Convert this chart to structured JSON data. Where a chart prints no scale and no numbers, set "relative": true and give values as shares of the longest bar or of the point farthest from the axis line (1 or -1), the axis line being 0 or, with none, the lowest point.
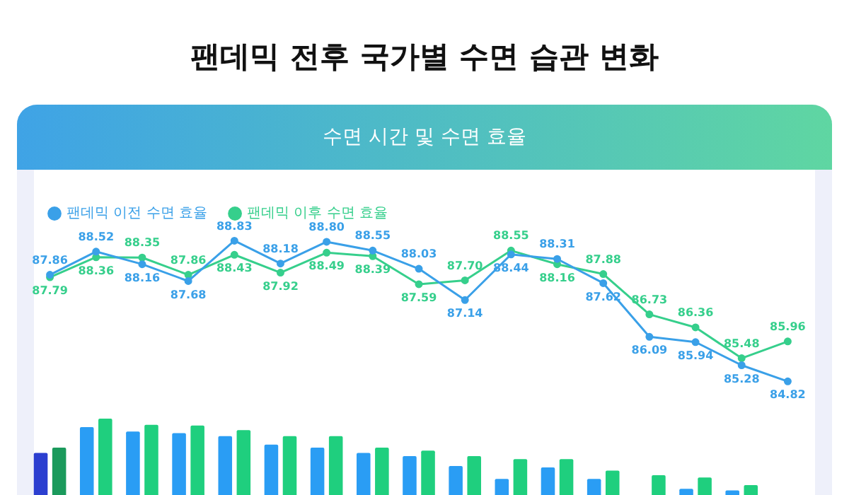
{
  "chart_data": [
    {
      "type": "line",
      "title": "팬데믹 전후 국가별 수면 습관 변화",
      "subtitle": "수면 시간 및 수면 효율",
      "categories": [
        null,
        null,
        null,
        null,
        null,
        null,
        null,
        null,
        null,
        null,
        null,
        null,
        null,
        null,
        null,
        null,
        null
      ],
      "series": [
        {
          "name": "팬데믹 이전 수면 효율",
          "color": "#3aa0e8",
          "values": [
            87.86,
            88.52,
            88.16,
            87.68,
            88.83,
            88.18,
            88.8,
            88.55,
            88.03,
            87.14,
            88.44,
            88.31,
            87.62,
            86.09,
            85.94,
            85.28,
            84.82
          ],
          "value_labels": [
            "87.86",
            "88.52",
            "88.16",
            "87.68",
            "88.83",
            "88.18",
            "88.80",
            "88.55",
            "88.03",
            "87.14",
            "88.44",
            "88.31",
            "87.62",
            "86.09",
            "85.94",
            "85.28",
            "84.82"
          ]
        },
        {
          "name": "팬데믹 이후 수면 효율",
          "color": "#36cf8c",
          "values": [
            87.79,
            88.36,
            88.35,
            87.86,
            88.43,
            87.92,
            88.49,
            88.39,
            87.59,
            87.7,
            88.55,
            88.16,
            87.88,
            86.73,
            86.36,
            85.48,
            85.96
          ],
          "value_labels": [
            "87.79",
            "88.36",
            "88.35",
            "87.86",
            "88.43",
            "87.92",
            "88.49",
            "88.39",
            "87.59",
            "87.70",
            "88.55",
            "88.16",
            "87.88",
            "86.73",
            "86.36",
            "85.48",
            "85.96"
          ]
        }
      ],
      "legend": "top left",
      "grid": false,
      "tick_labels": false,
      "marker": "circle",
      "line_style": "solid"
    },
    {
      "type": "bar",
      "relative": true,
      "categories": [
        null,
        null,
        null,
        null,
        null,
        null,
        null,
        null,
        null,
        null,
        null,
        null,
        null,
        null,
        null,
        null,
        null
      ],
      "series": [
        {
          "colors": [
            "#2c3fd0",
            "#2a9df4",
            "#2a9df4",
            "#2a9df4",
            "#2a9df4",
            "#2a9df4",
            "#2a9df4",
            "#2a9df4",
            "#2a9df4",
            "#2a9df4",
            "#2a9df4",
            "#2a9df4",
            "#2a9df4",
            "#2a9df4",
            "#2a9df4",
            "#2a9df4",
            "#2a9df4"
          ],
          "values": [
            0.55,
            0.89,
            0.83,
            0.81,
            0.77,
            0.66,
            0.62,
            0.55,
            0.51,
            0.38,
            0.21,
            0.36,
            0.21,
            null,
            0.08,
            0.06,
            null
          ]
        },
        {
          "colors": [
            "#1b9a5c",
            "#1fcf7e",
            "#1fcf7e",
            "#1fcf7e",
            "#1fcf7e",
            "#1fcf7e",
            "#1fcf7e",
            "#1fcf7e",
            "#1fcf7e",
            "#1fcf7e",
            "#1fcf7e",
            "#1fcf7e",
            "#1fcf7e",
            "#1fcf7e",
            "#1fcf7e",
            "#1fcf7e",
            "#1fcf7e"
          ],
          "values": [
            0.62,
            1,
            0.92,
            0.91,
            0.85,
            0.77,
            0.77,
            0.62,
            0.58,
            0.51,
            0.47,
            0.47,
            0.32,
            0.26,
            0.23,
            0.13,
            null
          ]
        }
      ],
      "grid": false,
      "tick_labels": false
    }
  ]
}
